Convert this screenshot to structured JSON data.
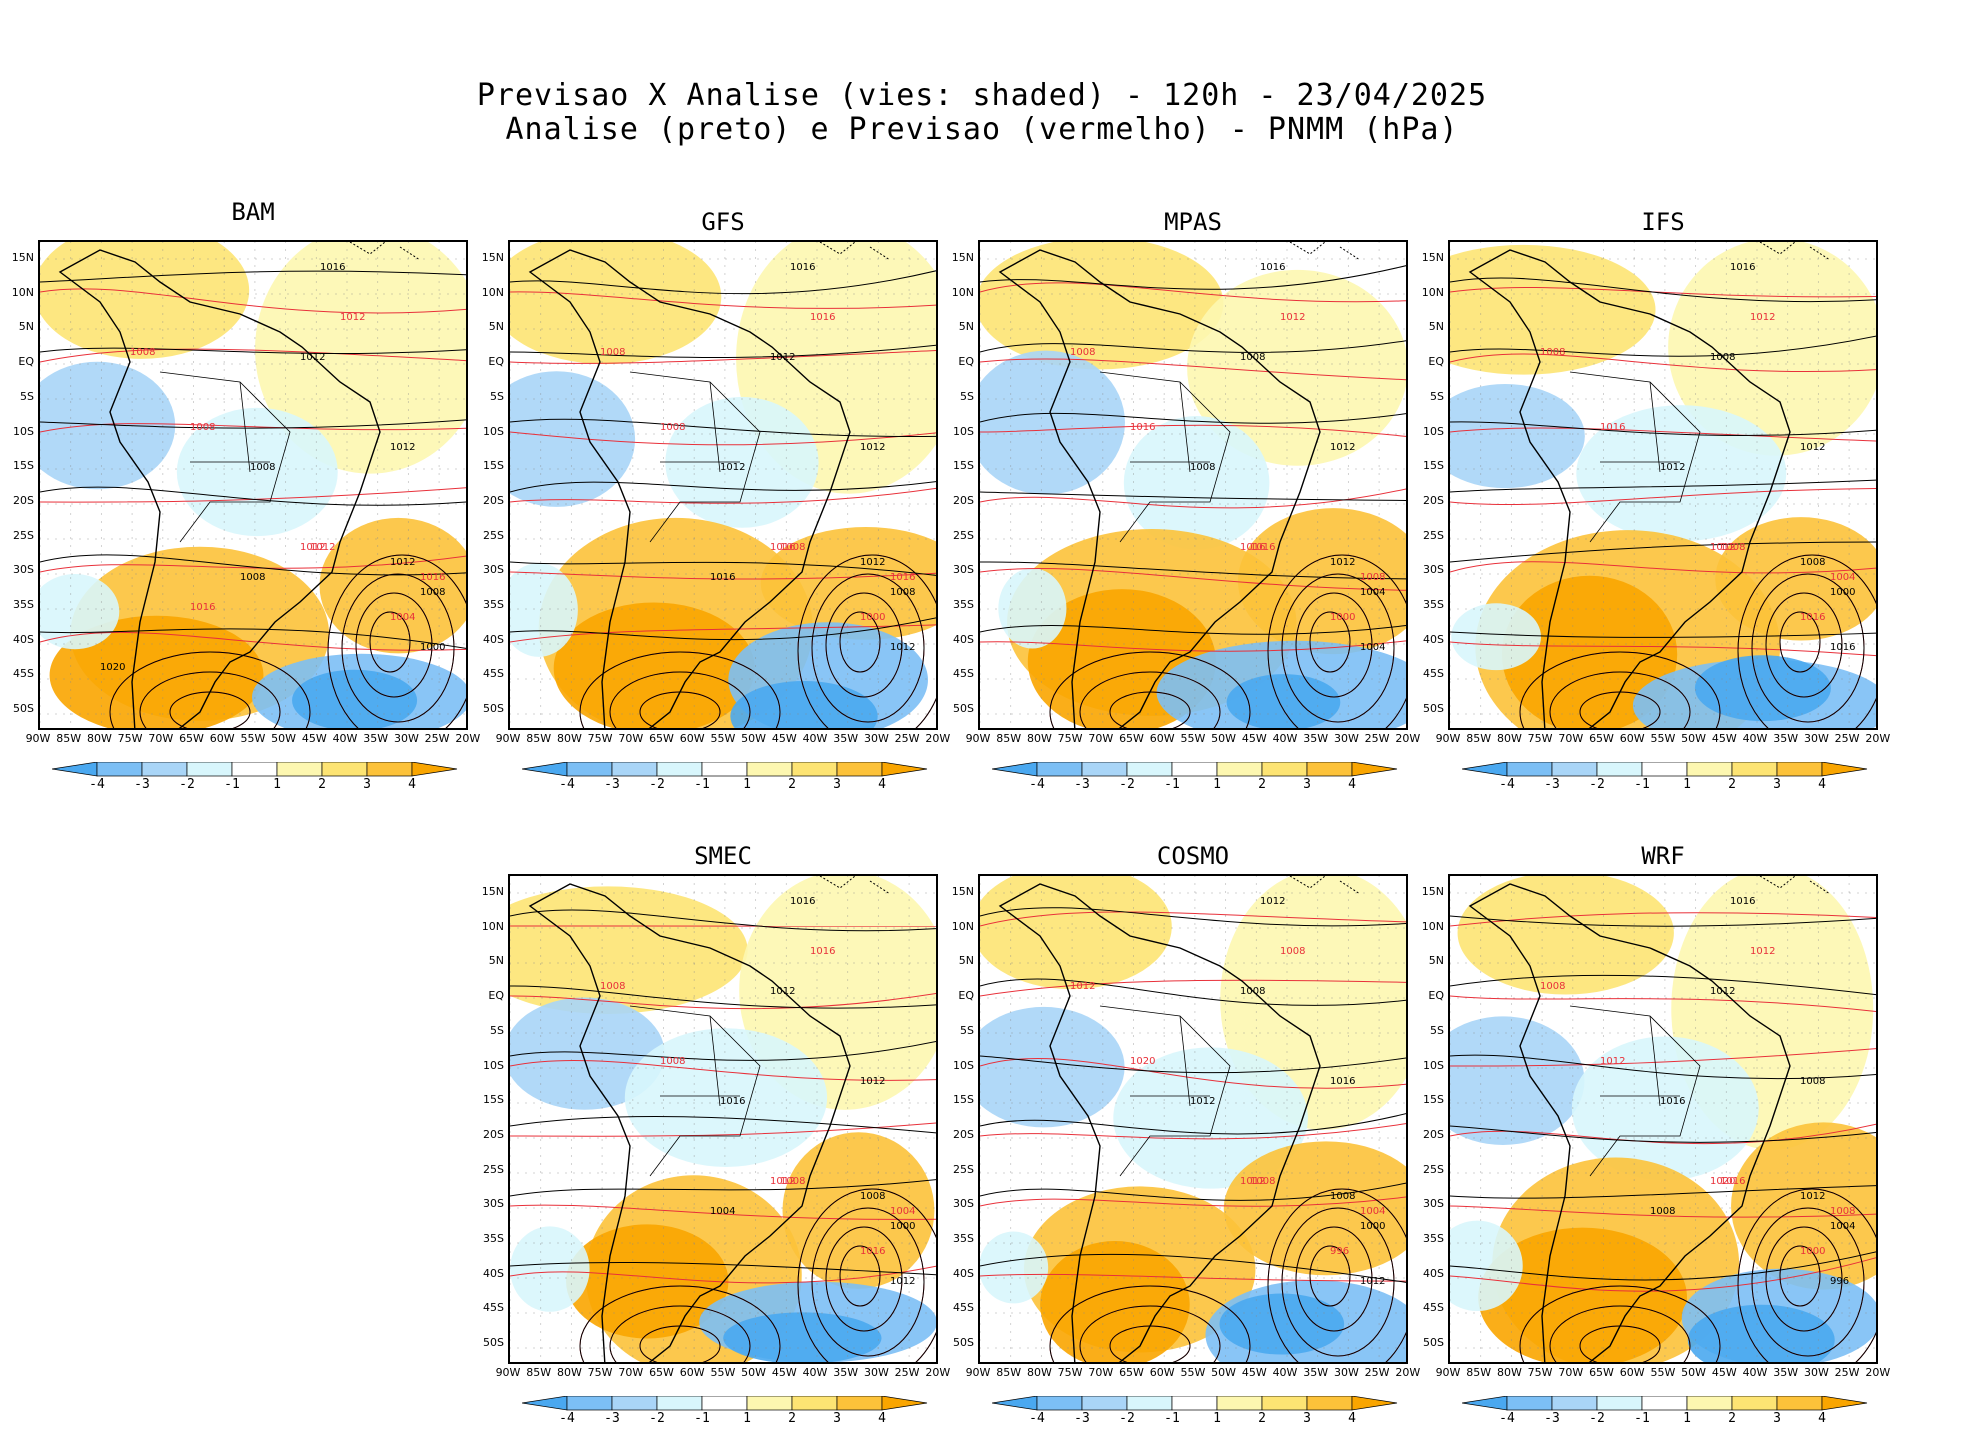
{
  "title": {
    "line1": "Previsao X Analise (vies: shaded) - 120h - 23/04/2025",
    "line2": "Analise (preto) e Previsao (vermelho) - PNMM (hPa)"
  },
  "axes": {
    "lat_labels": [
      "15N",
      "10N",
      "5N",
      "EQ",
      "5S",
      "10S",
      "15S",
      "20S",
      "25S",
      "30S",
      "35S",
      "40S",
      "45S",
      "50S"
    ],
    "lon_labels": [
      "90W",
      "85W",
      "80W",
      "75W",
      "70W",
      "65W",
      "60W",
      "55W",
      "50W",
      "45W",
      "40W",
      "35W",
      "30W",
      "25W",
      "20W"
    ]
  },
  "colorbar": {
    "labels": [
      "-4",
      "-3",
      "-2",
      "-1",
      "1",
      "2",
      "3",
      "4"
    ],
    "colors": [
      "#4aa8f0",
      "#7cbff5",
      "#a9d5f7",
      "#d8f6fc",
      "#ffffff",
      "#fdf7b0",
      "#fde473",
      "#fcc23a",
      "#f9a500"
    ]
  },
  "colors": {
    "analysis_contour": "#000000",
    "forecast_contour": "#e8303a",
    "positive_bias": "#f9a500",
    "negative_bias": "#4aa8f0"
  },
  "panels": [
    {
      "name": "BAM",
      "labels": [
        "1016",
        "1012",
        "1012",
        "1008",
        "1012",
        "1008",
        "1008",
        "1012",
        "1012",
        "1016",
        "1008",
        "1004",
        "1000",
        "1012",
        "1008",
        "1016",
        "1020"
      ]
    },
    {
      "name": "GFS",
      "labels": [
        "1016",
        "1016",
        "1012",
        "1008",
        "1012",
        "1008",
        "1012",
        "1016",
        "1012",
        "1016",
        "1008",
        "1000",
        "1012",
        "1008",
        "1016"
      ]
    },
    {
      "name": "MPAS",
      "labels": [
        "1016",
        "1012",
        "1008",
        "1008",
        "1012",
        "1016",
        "1008",
        "1016",
        "1012",
        "1008",
        "1004",
        "1000",
        "1004",
        "1016"
      ]
    },
    {
      "name": "IFS",
      "labels": [
        "1016",
        "1012",
        "1008",
        "1008",
        "1012",
        "1016",
        "1012",
        "1012",
        "1008",
        "1004",
        "1000",
        "1016",
        "1016",
        "1008"
      ]
    },
    {
      "name": "SMEC",
      "labels": [
        "1016",
        "1016",
        "1012",
        "1008",
        "1012",
        "1008",
        "1016",
        "1012",
        "1008",
        "1004",
        "1000",
        "1016",
        "1012",
        "1008",
        "1004"
      ]
    },
    {
      "name": "COSMO",
      "labels": [
        "1012",
        "1008",
        "1008",
        "1012",
        "1016",
        "1020",
        "1012",
        "1012",
        "1008",
        "1004",
        "1000",
        "996",
        "1012",
        "1008"
      ]
    },
    {
      "name": "WRF",
      "labels": [
        "1016",
        "1012",
        "1012",
        "1008",
        "1008",
        "1012",
        "1016",
        "1020",
        "1012",
        "1008",
        "1004",
        "1000",
        "996",
        "1016",
        "1008"
      ]
    }
  ]
}
